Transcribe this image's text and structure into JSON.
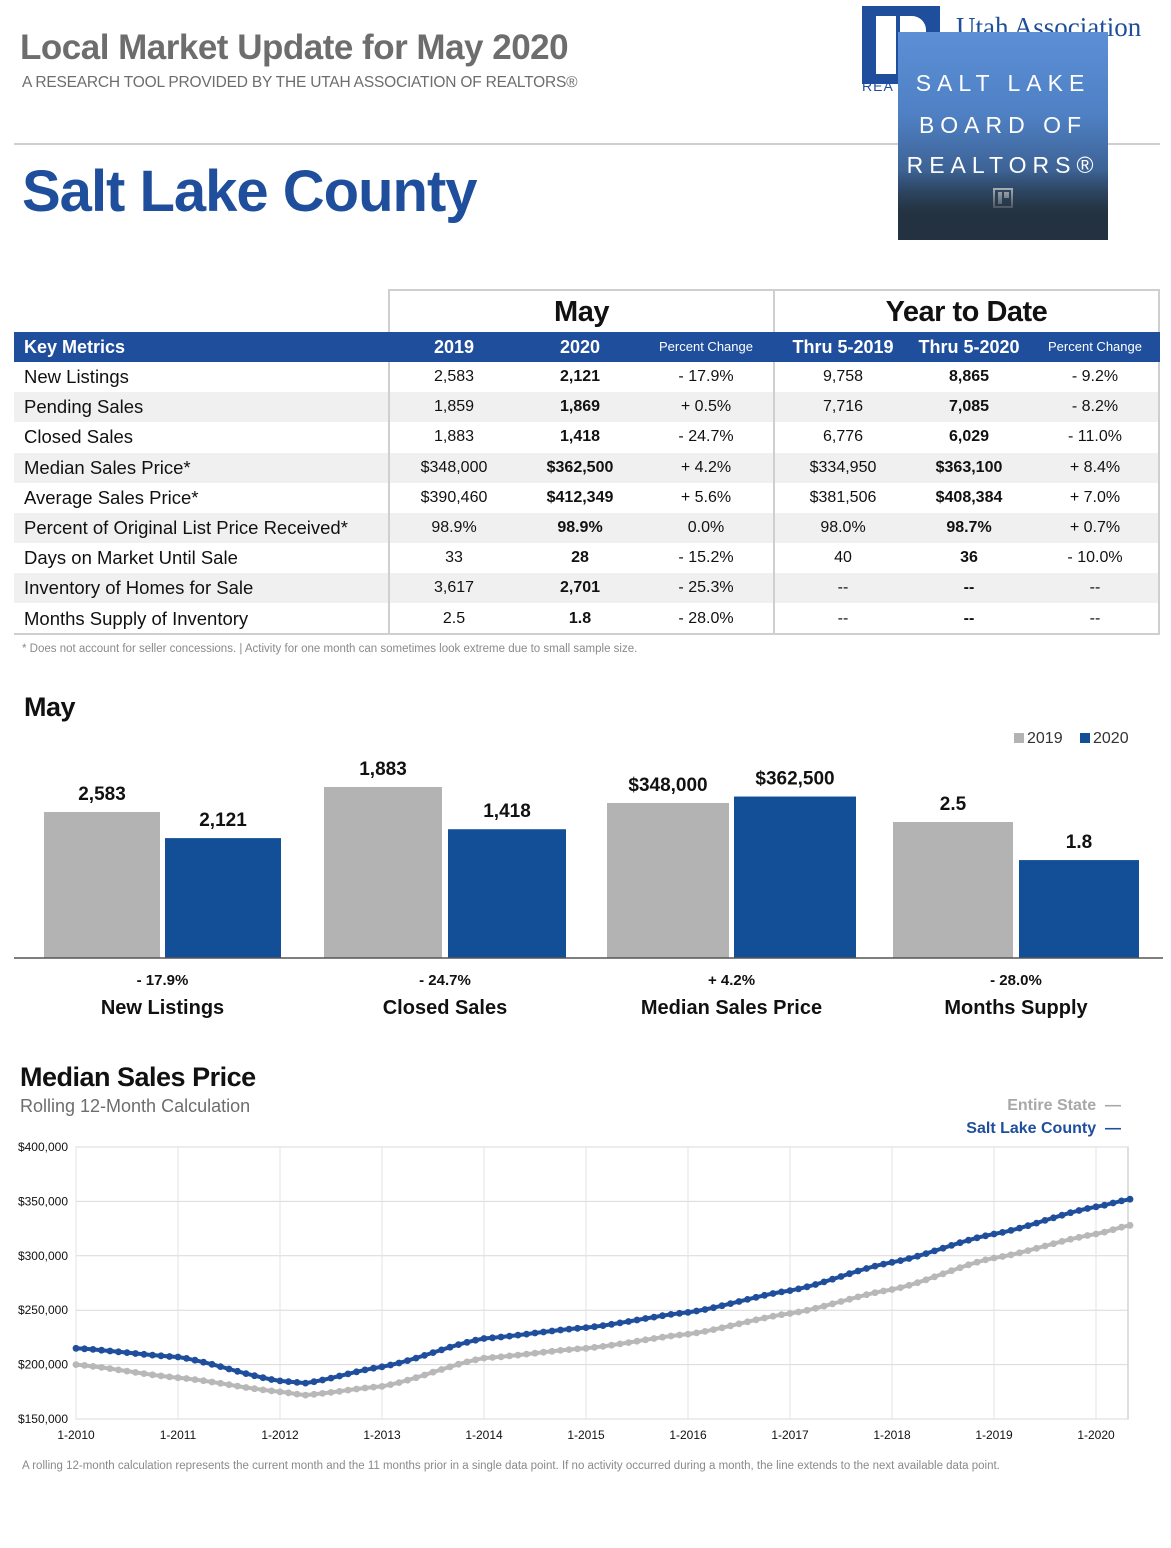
{
  "header": {
    "title": "Local Market Update for May 2020",
    "subtitle": "A RESEARCH TOOL PROVIDED BY THE UTAH ASSOCIATION OF REALTORS®",
    "area": "Salt Lake County"
  },
  "logos": {
    "utah_association": "Utah Association",
    "utah_association_tag": "REA",
    "board_line1": "SALT LAKE",
    "board_line2": "BOARD OF",
    "board_line3": "REALTORS®"
  },
  "colors": {
    "brand_blue": "#1f4e9c",
    "bar_2019": "#b3b3b3",
    "bar_2020": "#134f97",
    "state_line": "#b8b8b8",
    "county_line": "#1f4e9c"
  },
  "table": {
    "group_may": "May",
    "group_ytd": "Year to Date",
    "headers": {
      "key_metrics": "Key Metrics",
      "may_2019": "2019",
      "may_2020": "2020",
      "may_pct": "Percent Change",
      "ytd_2019": "Thru 5-2019",
      "ytd_2020": "Thru 5-2020",
      "ytd_pct": "Percent Change"
    },
    "rows": [
      {
        "metric": "New Listings",
        "may_2019": "2,583",
        "may_2020": "2,121",
        "may_pct": "- 17.9%",
        "ytd_2019": "9,758",
        "ytd_2020": "8,865",
        "ytd_pct": "- 9.2%"
      },
      {
        "metric": "Pending Sales",
        "may_2019": "1,859",
        "may_2020": "1,869",
        "may_pct": "+ 0.5%",
        "ytd_2019": "7,716",
        "ytd_2020": "7,085",
        "ytd_pct": "- 8.2%"
      },
      {
        "metric": "Closed Sales",
        "may_2019": "1,883",
        "may_2020": "1,418",
        "may_pct": "- 24.7%",
        "ytd_2019": "6,776",
        "ytd_2020": "6,029",
        "ytd_pct": "- 11.0%"
      },
      {
        "metric": "Median Sales Price*",
        "may_2019": "$348,000",
        "may_2020": "$362,500",
        "may_pct": "+ 4.2%",
        "ytd_2019": "$334,950",
        "ytd_2020": "$363,100",
        "ytd_pct": "+ 8.4%"
      },
      {
        "metric": "Average Sales Price*",
        "may_2019": "$390,460",
        "may_2020": "$412,349",
        "may_pct": "+ 5.6%",
        "ytd_2019": "$381,506",
        "ytd_2020": "$408,384",
        "ytd_pct": "+ 7.0%"
      },
      {
        "metric": "Percent of Original List Price Received*",
        "may_2019": "98.9%",
        "may_2020": "98.9%",
        "may_pct": "0.0%",
        "ytd_2019": "98.0%",
        "ytd_2020": "98.7%",
        "ytd_pct": "+ 0.7%"
      },
      {
        "metric": "Days on Market Until Sale",
        "may_2019": "33",
        "may_2020": "28",
        "may_pct": "- 15.2%",
        "ytd_2019": "40",
        "ytd_2020": "36",
        "ytd_pct": "- 10.0%"
      },
      {
        "metric": "Inventory of Homes for Sale",
        "may_2019": "3,617",
        "may_2020": "2,701",
        "may_pct": "- 25.3%",
        "ytd_2019": "--",
        "ytd_2020": "--",
        "ytd_pct": "--"
      },
      {
        "metric": "Months Supply of Inventory",
        "may_2019": "2.5",
        "may_2020": "1.8",
        "may_pct": "- 28.0%",
        "ytd_2019": "--",
        "ytd_2020": "--",
        "ytd_pct": "--"
      }
    ],
    "footnote": "* Does not account for seller concessions.  |  Activity for one month can sometimes look extreme due to small sample size."
  },
  "chart_data": [
    {
      "type": "bar",
      "title": "May",
      "legend": [
        "2019",
        "2020"
      ],
      "legend_position": "top-right",
      "groups": [
        {
          "name": "New Listings",
          "change": "- 17.9%",
          "values": [
            2583,
            2121
          ],
          "labels": [
            "2,583",
            "2,121"
          ]
        },
        {
          "name": "Closed Sales",
          "change": "- 24.7%",
          "values": [
            1883,
            1418
          ],
          "labels": [
            "1,883",
            "1,418"
          ]
        },
        {
          "name": "Median Sales Price",
          "change": "+ 4.2%",
          "values": [
            348000,
            362500
          ],
          "labels": [
            "$348,000",
            "$362,500"
          ]
        },
        {
          "name": "Months Supply",
          "change": "- 28.0%",
          "values": [
            2.5,
            1.8
          ],
          "labels": [
            "2.5",
            "1.8"
          ]
        }
      ]
    },
    {
      "type": "line",
      "title": "Median Sales Price",
      "subtitle": "Rolling 12-Month Calculation",
      "x_ticks": [
        "1-2010",
        "1-2011",
        "1-2012",
        "1-2013",
        "1-2014",
        "1-2015",
        "1-2016",
        "1-2017",
        "1-2018",
        "1-2019",
        "1-2020"
      ],
      "y_ticks": [
        "$150,000",
        "$200,000",
        "$250,000",
        "$300,000",
        "$350,000",
        "$400,000"
      ],
      "ylim": [
        150000,
        400000
      ],
      "x_range": [
        "1-2010",
        "5-2020"
      ],
      "grid": true,
      "legend_position": "top-right",
      "series": [
        {
          "name": "Entire State",
          "anchors": [
            [
              "1-2010",
              200000
            ],
            [
              "1-2011",
              188000
            ],
            [
              "1-2012",
              175000
            ],
            [
              "4-2012",
              172000
            ],
            [
              "1-2013",
              180000
            ],
            [
              "1-2014",
              206000
            ],
            [
              "1-2015",
              215000
            ],
            [
              "1-2016",
              228000
            ],
            [
              "1-2017",
              247000
            ],
            [
              "1-2018",
              269000
            ],
            [
              "1-2019",
              298000
            ],
            [
              "1-2020",
              320000
            ],
            [
              "5-2020",
              328000
            ]
          ]
        },
        {
          "name": "Salt Lake County",
          "anchors": [
            [
              "1-2010",
              215000
            ],
            [
              "1-2011",
              207000
            ],
            [
              "1-2012",
              185000
            ],
            [
              "4-2012",
              183000
            ],
            [
              "1-2013",
              198000
            ],
            [
              "1-2014",
              224000
            ],
            [
              "1-2015",
              234000
            ],
            [
              "1-2016",
              248000
            ],
            [
              "1-2017",
              268000
            ],
            [
              "1-2018",
              294000
            ],
            [
              "1-2019",
              320000
            ],
            [
              "1-2020",
              345000
            ],
            [
              "5-2020",
              352000
            ]
          ]
        }
      ]
    }
  ],
  "bottom_note": "A rolling 12-month calculation represents the current month and the 11 months prior in a single data point. If no activity occurred during a month, the line extends to the next available data point."
}
